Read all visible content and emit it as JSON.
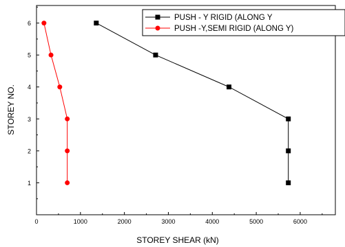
{
  "chart_data": {
    "type": "line",
    "xlabel": "STOREY SHEAR (kN)",
    "ylabel": "STOREY NO.",
    "xlim": [
      0,
      6800
    ],
    "ylim": [
      0,
      6.55
    ],
    "x_ticks": [
      0,
      1000,
      2000,
      3000,
      4000,
      5000,
      6000
    ],
    "y_ticks": [
      1,
      2,
      3,
      4,
      5,
      6
    ],
    "grid": false,
    "legend_position": "top-right",
    "series": [
      {
        "name": "PUSH - Y RIGID (ALONG Y",
        "color": "#000000",
        "marker": "square",
        "x": [
          5730,
          5730,
          5730,
          4380,
          2710,
          1360
        ],
        "y": [
          1,
          2,
          3,
          4,
          5,
          6
        ]
      },
      {
        "name": "PUSH -Y,SEMI  RIGID (ALONG Y)",
        "color": "#ff0000",
        "marker": "circle",
        "x": [
          700,
          700,
          700,
          530,
          330,
          170
        ],
        "y": [
          1,
          2,
          3,
          4,
          5,
          6
        ]
      }
    ]
  }
}
